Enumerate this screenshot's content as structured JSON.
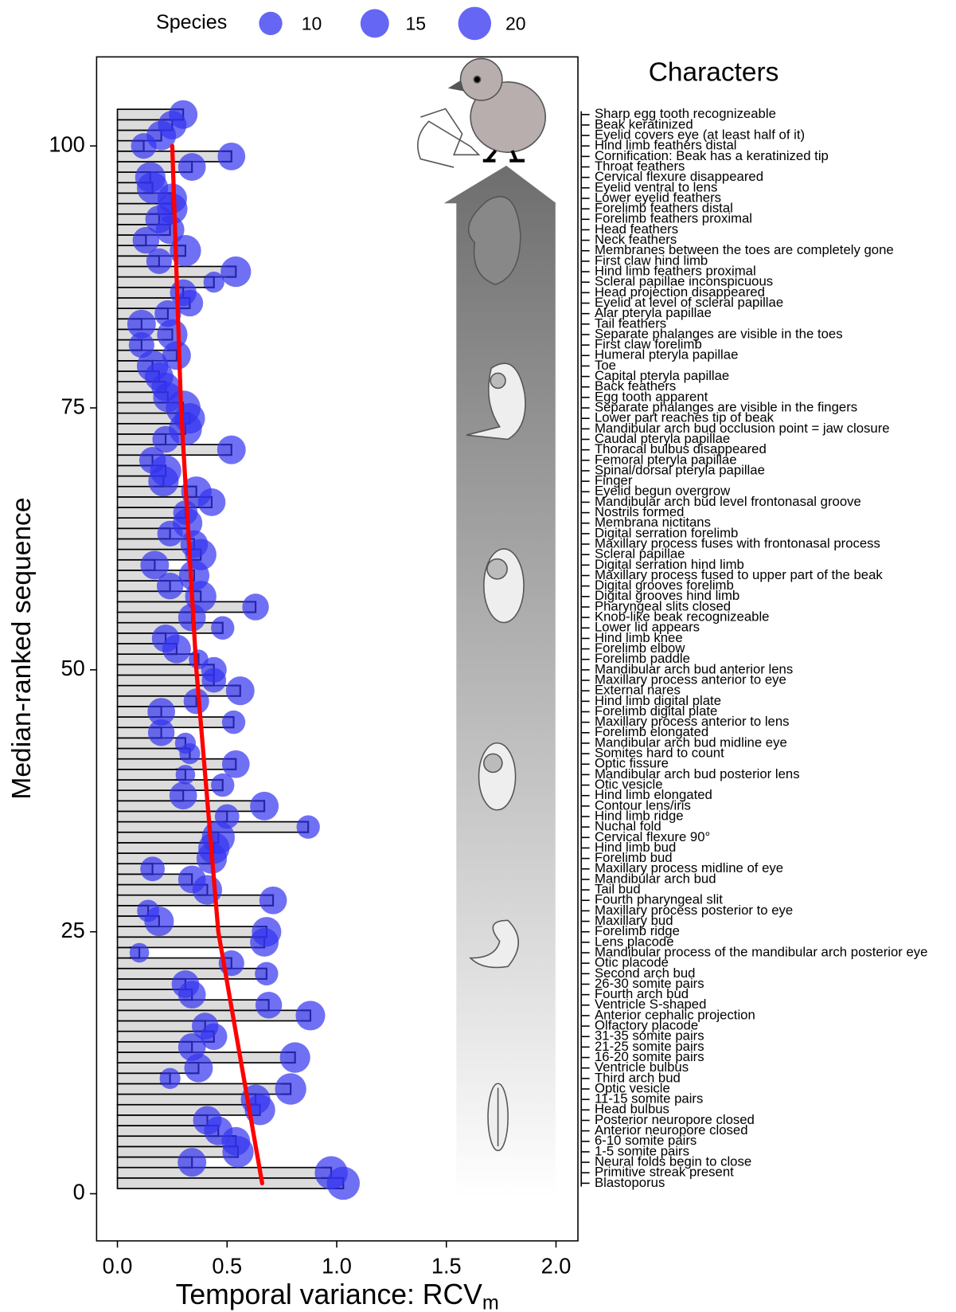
{
  "chart_data": {
    "type": "bar",
    "orientation": "horizontal",
    "x_label": {
      "text": "Temporal variance: RCV",
      "subscript": "m"
    },
    "y_label": "Median-ranked sequence",
    "categories_title": "Characters",
    "categories": [
      "Blastoporus",
      "Primitive streak present",
      "Neural folds begin to close",
      "1-5 somite pairs",
      "6-10 somite pairs",
      "Anterior neuropore closed",
      "Posterior neuropore closed",
      "Head bulbus",
      "11-15 somite pairs",
      "Optic vesicle",
      "Third arch bud",
      "Ventricle bulbus",
      "16-20 somite pairs",
      "21-25 somite pairs",
      "31-35 somite pairs",
      "Olfactory placode",
      "Anterior cephalic projection",
      "Ventricle S-shaped",
      "Fourth arch bud",
      "26-30 somite pairs",
      "Second arch bud",
      "Otic placode",
      "Mandibular process of the mandibular arch posterior eye",
      "Lens placode",
      "Forelimb ridge",
      "Maxillary bud",
      "Maxillary process posterior to eye",
      "Fourth pharyngeal slit",
      "Tail bud",
      "Mandibular arch bud",
      "Maxillary process midline of eye",
      "Forelimb bud",
      "Hind limb bud",
      "Cervical flexure 90°",
      "Nuchal fold",
      "Hind limb ridge",
      "Contour lens/iris",
      "Hind limb elongated",
      "Otic vesicle",
      "Mandibular arch bud posterior lens",
      "Optic fissure",
      "Somites hard to count",
      "Mandibular arch bud midline eye",
      "Forelimb elongated",
      "Maxillary process anterior to lens",
      "Forelimb digital plate",
      "Hind limb digital plate",
      "External nares",
      "Maxillary process anterior to eye",
      "Mandibular arch bud anterior lens",
      "Forelimb paddle",
      "Forelimb elbow",
      "Hind limb knee",
      "Lower lid appears",
      "Knob-like beak recognizeable",
      "Pharyngeal slits closed",
      "Digital grooves hind limb",
      "Digital grooves forelimb",
      "Maxillary process fused to upper part of the beak",
      "Digital serration hind limb",
      "Scleral papillae",
      "Maxillary process fuses with frontonasal process",
      "Digital serration forelimb",
      "Membrana nictitans",
      "Nostrils formed",
      "Mandibular arch bud level frontonasal groove",
      "Eyelid begun overgrow",
      "Finger",
      "Spinal/dorsal pteryla papillae",
      "Femoral pteryla papillae",
      "Thoracal bulbus disappeared",
      "Caudal pteryla papillae",
      "Mandibular arch bud occlusion point = jaw closure",
      "Lower part reaches tip of beak",
      "Separate phalanges are visible in the fingers",
      "Egg tooth apparent",
      "Back feathers",
      "Capital pteryla papillae",
      "Toe",
      "Humeral pteryla papillae",
      "First claw forelimb",
      "Separate phalanges are visible in the toes",
      "Tail feathers",
      "Alar pteryla papillae",
      "Eyelid at level of scleral papillae",
      "Head projection disappeared",
      "Scleral papillae inconspicuous",
      "Hind limb feathers proximal",
      "First claw hind limb",
      "Membranes between the toes are completely gone",
      "Neck feathers",
      "Head feathers",
      "Forelimb feathers proximal",
      "Forelimb feathers distal",
      "Lower eyelid feathers",
      "Eyelid ventral to lens",
      "Cervical flexure disappeared",
      "Throat feathers",
      "Cornification: Beak has a keratinized tip",
      "Hind limb feathers distal",
      "Eyelid covers eye (at least half of it)",
      "Beak  keratinized",
      "Sharp egg tooth recognizeable"
    ],
    "values": [
      1.03,
      0.975,
      0.34,
      0.55,
      0.54,
      0.46,
      0.41,
      0.65,
      0.63,
      0.79,
      0.24,
      0.37,
      0.81,
      0.34,
      0.44,
      0.4,
      0.88,
      0.69,
      0.34,
      0.31,
      0.68,
      0.52,
      0.1,
      0.67,
      0.68,
      0.19,
      0.14,
      0.71,
      0.41,
      0.34,
      0.16,
      0.43,
      0.44,
      0.46,
      0.87,
      0.5,
      0.67,
      0.3,
      0.48,
      0.31,
      0.54,
      0.33,
      0.31,
      0.2,
      0.53,
      0.2,
      0.36,
      0.56,
      0.44,
      0.44,
      0.37,
      0.27,
      0.22,
      0.48,
      0.34,
      0.63,
      0.38,
      0.24,
      0.35,
      0.17,
      0.38,
      0.35,
      0.24,
      0.32,
      0.31,
      0.43,
      0.36,
      0.21,
      0.22,
      0.16,
      0.52,
      0.22,
      0.31,
      0.33,
      0.3,
      0.23,
      0.22,
      0.19,
      0.16,
      0.27,
      0.11,
      0.25,
      0.11,
      0.23,
      0.33,
      0.3,
      0.44,
      0.54,
      0.19,
      0.31,
      0.13,
      0.24,
      0.19,
      0.25,
      0.25,
      0.16,
      0.15,
      0.34,
      0.52,
      0.12,
      0.2,
      0.25,
      0.3
    ],
    "sizes": [
      20,
      20,
      15,
      18,
      15,
      15,
      15,
      17,
      16,
      18,
      8,
      15,
      17,
      14,
      13,
      13,
      16,
      13,
      14,
      14,
      10,
      12,
      7,
      15,
      16,
      16,
      9,
      14,
      16,
      14,
      11,
      17,
      18,
      20,
      10,
      11,
      15,
      14,
      10,
      7,
      14,
      8,
      8,
      13,
      10,
      14,
      12,
      15,
      11,
      12,
      7,
      15,
      14,
      10,
      14,
      13,
      18,
      13,
      17,
      15,
      18,
      14,
      12,
      16,
      11,
      14,
      17,
      17,
      18,
      13,
      15,
      13,
      20,
      17,
      22,
      16,
      15,
      15,
      18,
      15,
      12,
      17,
      15,
      13,
      13,
      13,
      8,
      17,
      12,
      18,
      13,
      15,
      14,
      17,
      16,
      18,
      17,
      14,
      14,
      12,
      16,
      15,
      15
    ],
    "bar_color": "#dcdcdc",
    "bubble_color": "#3333f0",
    "size_legend": {
      "title": "Species",
      "values": [
        10,
        15,
        20
      ]
    },
    "trend": {
      "color": "#ff0000",
      "values": [
        0.66,
        0.46,
        0.36,
        0.29,
        0.25
      ],
      "ranks": [
        1,
        25,
        50,
        75,
        100
      ]
    },
    "xlim": [
      -0.095,
      2.1
    ],
    "ylim": [
      -4.5,
      108.5
    ],
    "xticks": [
      {
        "value": 0,
        "label": "0.0"
      },
      0.5,
      {
        "value": 1,
        "label": "1.0"
      },
      1.5,
      {
        "value": 2,
        "label": "2.0"
      }
    ],
    "yticks": [
      0,
      25,
      50,
      75,
      100
    ]
  }
}
